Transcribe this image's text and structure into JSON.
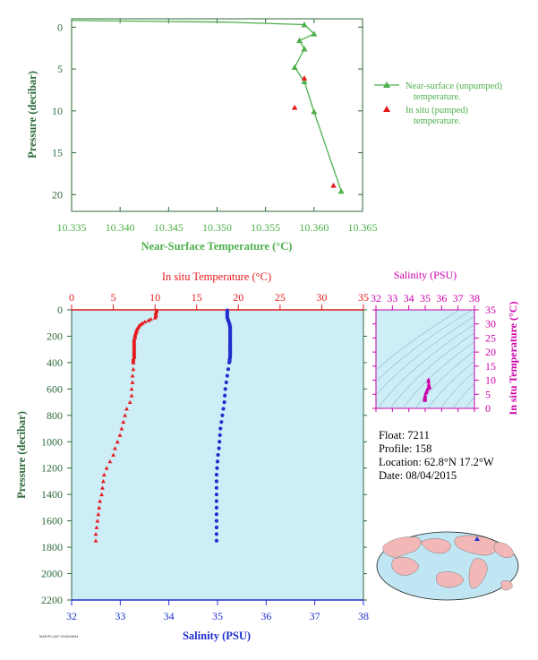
{
  "colors": {
    "green": "#4daf4a",
    "dark_green": "#2d6a3a",
    "red": "#e41a1c",
    "blue": "#1f2fcc",
    "magenta": "#cc00aa",
    "panel_bg": "#cdeef7"
  },
  "info": {
    "float": "Float:  7211",
    "profile": "Profile:  158",
    "location": "Location:  62.8°N  17.2°W",
    "date": "Date:  08/04/2015"
  },
  "footer": "MAP/FLOAT 2015/08/04",
  "chart_data": [
    {
      "type": "line",
      "xlabel": "Near-Surface Temperature (°C)",
      "ylabel": "Pressure (decibar)",
      "xlim": [
        10.335,
        10.365
      ],
      "ylim": [
        22,
        -1
      ],
      "xticks": [
        10.335,
        10.34,
        10.345,
        10.35,
        10.355,
        10.36,
        10.365
      ],
      "xticklabels": [
        "10.335",
        "10.340",
        "10.345",
        "10.350",
        "10.355",
        "10.360",
        "10.365"
      ],
      "yticks": [
        0,
        5,
        10,
        15,
        20
      ],
      "legend_position": "right",
      "series": [
        {
          "name": "Near-surface (unpumped) temperature.",
          "marker": "triangle-line",
          "points": [
            [
              10.335,
              -0.8
            ],
            [
              10.351,
              -0.6
            ],
            [
              10.359,
              -0.3
            ],
            [
              10.36,
              0.8
            ],
            [
              10.3585,
              1.6
            ],
            [
              10.359,
              2.6
            ],
            [
              10.358,
              4.8
            ],
            [
              10.359,
              6.5
            ],
            [
              10.36,
              10.1
            ],
            [
              10.3628,
              19.6
            ]
          ]
        },
        {
          "name": "In situ (pumped) temperature.",
          "marker": "triangle",
          "points": [
            [
              10.359,
              6.1
            ],
            [
              10.358,
              9.6
            ],
            [
              10.362,
              18.9
            ]
          ]
        }
      ]
    },
    {
      "type": "scatter",
      "title_top": "In situ Temperature (°C)",
      "xlabel": "Salinity (PSU)",
      "ylabel": "Pressure (decibar)",
      "temp_lim": [
        0,
        35
      ],
      "temp_ticks": [
        0,
        5,
        10,
        15,
        20,
        25,
        30,
        35
      ],
      "sal_lim": [
        32,
        38
      ],
      "sal_ticks": [
        32,
        33,
        34,
        35,
        36,
        37,
        38
      ],
      "ylim": [
        2200,
        0
      ],
      "yticks": [
        0,
        200,
        400,
        600,
        800,
        1000,
        1200,
        1400,
        1600,
        1800,
        2000,
        2200
      ],
      "series": [
        {
          "name": "temperature",
          "points": [
            [
              10.2,
              4
            ],
            [
              10.2,
              10
            ],
            [
              10.1,
              20
            ],
            [
              10.1,
              30
            ],
            [
              10.1,
              40
            ],
            [
              10.1,
              50
            ],
            [
              10.0,
              60
            ],
            [
              9.5,
              70
            ],
            [
              9.2,
              80
            ],
            [
              8.8,
              90
            ],
            [
              8.5,
              100
            ],
            [
              8.3,
              110
            ],
            [
              8.1,
              120
            ],
            [
              8.0,
              130
            ],
            [
              7.9,
              140
            ],
            [
              7.8,
              150
            ],
            [
              7.8,
              160
            ],
            [
              7.7,
              170
            ],
            [
              7.7,
              180
            ],
            [
              7.6,
              190
            ],
            [
              7.6,
              200
            ],
            [
              7.6,
              210
            ],
            [
              7.5,
              220
            ],
            [
              7.5,
              230
            ],
            [
              7.5,
              240
            ],
            [
              7.5,
              250
            ],
            [
              7.5,
              260
            ],
            [
              7.5,
              270
            ],
            [
              7.5,
              280
            ],
            [
              7.5,
              290
            ],
            [
              7.5,
              300
            ],
            [
              7.5,
              310
            ],
            [
              7.5,
              320
            ],
            [
              7.5,
              330
            ],
            [
              7.5,
              340
            ],
            [
              7.5,
              350
            ],
            [
              7.5,
              360
            ],
            [
              7.4,
              370
            ],
            [
              7.4,
              380
            ],
            [
              7.4,
              390
            ],
            [
              7.4,
              400
            ],
            [
              7.4,
              450
            ],
            [
              7.3,
              500
            ],
            [
              7.3,
              550
            ],
            [
              7.2,
              600
            ],
            [
              7.2,
              650
            ],
            [
              7.0,
              700
            ],
            [
              6.6,
              750
            ],
            [
              6.4,
              800
            ],
            [
              6.2,
              850
            ],
            [
              6.0,
              900
            ],
            [
              5.8,
              950
            ],
            [
              5.5,
              1000
            ],
            [
              5.2,
              1050
            ],
            [
              5.0,
              1100
            ],
            [
              4.6,
              1150
            ],
            [
              4.2,
              1200
            ],
            [
              3.9,
              1250
            ],
            [
              3.8,
              1300
            ],
            [
              3.7,
              1350
            ],
            [
              3.6,
              1400
            ],
            [
              3.4,
              1450
            ],
            [
              3.3,
              1500
            ],
            [
              3.2,
              1550
            ],
            [
              3.1,
              1600
            ],
            [
              3.0,
              1650
            ],
            [
              2.9,
              1700
            ],
            [
              2.9,
              1750
            ]
          ]
        },
        {
          "name": "salinity",
          "points": [
            [
              35.2,
              4
            ],
            [
              35.2,
              10
            ],
            [
              35.2,
              20
            ],
            [
              35.2,
              30
            ],
            [
              35.2,
              40
            ],
            [
              35.2,
              50
            ],
            [
              35.2,
              60
            ],
            [
              35.21,
              70
            ],
            [
              35.22,
              80
            ],
            [
              35.23,
              90
            ],
            [
              35.24,
              100
            ],
            [
              35.25,
              110
            ],
            [
              35.25,
              120
            ],
            [
              35.26,
              130
            ],
            [
              35.26,
              140
            ],
            [
              35.26,
              150
            ],
            [
              35.26,
              160
            ],
            [
              35.26,
              170
            ],
            [
              35.26,
              180
            ],
            [
              35.26,
              190
            ],
            [
              35.26,
              200
            ],
            [
              35.26,
              210
            ],
            [
              35.26,
              220
            ],
            [
              35.26,
              230
            ],
            [
              35.26,
              240
            ],
            [
              35.26,
              250
            ],
            [
              35.26,
              260
            ],
            [
              35.26,
              270
            ],
            [
              35.26,
              280
            ],
            [
              35.26,
              290
            ],
            [
              35.26,
              300
            ],
            [
              35.26,
              310
            ],
            [
              35.26,
              320
            ],
            [
              35.26,
              330
            ],
            [
              35.26,
              340
            ],
            [
              35.26,
              350
            ],
            [
              35.26,
              360
            ],
            [
              35.25,
              370
            ],
            [
              35.25,
              380
            ],
            [
              35.25,
              390
            ],
            [
              35.24,
              400
            ],
            [
              35.22,
              450
            ],
            [
              35.2,
              500
            ],
            [
              35.18,
              550
            ],
            [
              35.16,
              600
            ],
            [
              35.15,
              650
            ],
            [
              35.14,
              700
            ],
            [
              35.12,
              750
            ],
            [
              35.1,
              800
            ],
            [
              35.08,
              850
            ],
            [
              35.06,
              900
            ],
            [
              35.05,
              950
            ],
            [
              35.04,
              1000
            ],
            [
              35.03,
              1050
            ],
            [
              35.01,
              1100
            ],
            [
              35.0,
              1150
            ],
            [
              34.99,
              1200
            ],
            [
              34.98,
              1250
            ],
            [
              34.98,
              1300
            ],
            [
              34.98,
              1350
            ],
            [
              34.98,
              1400
            ],
            [
              34.98,
              1450
            ],
            [
              34.98,
              1500
            ],
            [
              34.98,
              1550
            ],
            [
              34.98,
              1600
            ],
            [
              34.98,
              1650
            ],
            [
              34.98,
              1700
            ],
            [
              34.98,
              1750
            ]
          ]
        }
      ]
    },
    {
      "type": "scatter",
      "title_top": "Salinity (PSU)",
      "ylabel": "In situ Temperature (°C)",
      "sal_lim": [
        32,
        38
      ],
      "sal_ticks": [
        32,
        33,
        34,
        35,
        36,
        37,
        38
      ],
      "temp_lim": [
        0,
        35
      ],
      "temp_ticks": [
        0,
        5,
        10,
        15,
        20,
        25,
        30,
        35
      ],
      "points": [
        [
          35.2,
          10.2
        ],
        [
          35.2,
          9.5
        ],
        [
          35.22,
          8.5
        ],
        [
          35.25,
          7.8
        ],
        [
          35.26,
          7.5
        ],
        [
          35.25,
          7.4
        ],
        [
          35.2,
          7.3
        ],
        [
          35.16,
          7.2
        ],
        [
          35.12,
          6.6
        ],
        [
          35.08,
          6.0
        ],
        [
          35.04,
          5.5
        ],
        [
          35.0,
          4.6
        ],
        [
          34.99,
          4.0
        ],
        [
          34.98,
          3.6
        ],
        [
          34.98,
          3.2
        ],
        [
          34.98,
          2.9
        ]
      ]
    }
  ]
}
